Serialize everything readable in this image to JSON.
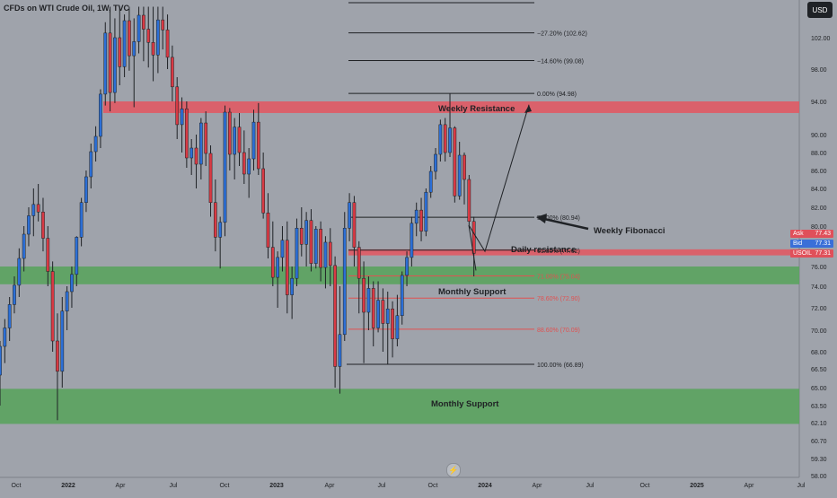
{
  "chart_data": {
    "type": "candlestick",
    "title": "CFDs on WTI Crude Oil, 1W, TVC",
    "currency": "USD",
    "y_ticks": [
      "102.00",
      "98.00",
      "94.00",
      "90.00",
      "88.00",
      "86.00",
      "84.00",
      "82.00",
      "80.00",
      "76.00",
      "74.00",
      "72.00",
      "70.00",
      "68.00",
      "66.50",
      "65.00",
      "63.50",
      "62.10",
      "60.70",
      "59.30",
      "58.00"
    ],
    "x_ticks": [
      "Oct",
      "2022",
      "Apr",
      "Jul",
      "Oct",
      "2023",
      "Apr",
      "Jul",
      "Oct",
      "2024",
      "Apr",
      "Jul",
      "Oct",
      "2025",
      "Apr",
      "Jul"
    ],
    "fib_levels": [
      {
        "label": "−27.20% (102.62)",
        "price": 102.62,
        "color": "#1f2124"
      },
      {
        "label": "−14.60% (99.08)",
        "price": 99.08,
        "color": "#1f2124"
      },
      {
        "label": "0.00% (94.98)",
        "price": 94.98,
        "color": "#1f2124"
      },
      {
        "label": "50.00% (80.94)",
        "price": 80.94,
        "color": "#1f2124"
      },
      {
        "label": "61.80% (77.62)",
        "price": 77.62,
        "color": "#1f2124"
      },
      {
        "label": "71.00% (75.04)",
        "price": 75.04,
        "color": "#e05252"
      },
      {
        "label": "78.60% (72.90)",
        "price": 72.9,
        "color": "#e05252"
      },
      {
        "label": "88.60% (70.09)",
        "price": 70.09,
        "color": "#e05252"
      },
      {
        "label": "100.00% (66.89)",
        "price": 66.89,
        "color": "#1f2124"
      }
    ],
    "zones": [
      {
        "label": "Weekly Resistance",
        "top": 94.0,
        "bottom": 92.6,
        "color": "#e05a64"
      },
      {
        "label": "Daily resistance",
        "top": 77.7,
        "bottom": 77.1,
        "color": "#e05a64"
      },
      {
        "label": "Monthly Support",
        "top": 76.0,
        "bottom": 74.2,
        "color": "#5aa35e"
      },
      {
        "label": "Monthly Support",
        "top": 64.9,
        "bottom": 62.0,
        "color": "#5aa35e"
      }
    ],
    "annotations": [
      "Weekly Fibonacci",
      "Monthly Support",
      "Daily resistance",
      "Weekly Resistance"
    ],
    "price_tags": [
      {
        "key": "Ask",
        "value": "77.43",
        "color": "#e0505a"
      },
      {
        "key": "Bid",
        "value": "77.31",
        "color": "#3a6fd8"
      },
      {
        "key": "USOIL",
        "value": "77.31",
        "color": "#e0505a"
      }
    ],
    "series": [
      {
        "o": 66.0,
        "h": 69.0,
        "l": 63.5,
        "c": 68.5
      },
      {
        "o": 68.5,
        "h": 71.0,
        "l": 67.0,
        "c": 70.2
      },
      {
        "o": 70.2,
        "h": 73.0,
        "l": 69.0,
        "c": 72.3
      },
      {
        "o": 72.3,
        "h": 75.0,
        "l": 71.5,
        "c": 74.1
      },
      {
        "o": 74.1,
        "h": 77.8,
        "l": 73.0,
        "c": 76.8
      },
      {
        "o": 76.8,
        "h": 80.0,
        "l": 75.5,
        "c": 79.2
      },
      {
        "o": 79.2,
        "h": 82.0,
        "l": 78.0,
        "c": 81.1
      },
      {
        "o": 81.1,
        "h": 84.0,
        "l": 79.0,
        "c": 82.3
      },
      {
        "o": 82.3,
        "h": 84.5,
        "l": 80.5,
        "c": 81.5
      },
      {
        "o": 81.5,
        "h": 83.0,
        "l": 77.5,
        "c": 78.8
      },
      {
        "o": 78.8,
        "h": 80.0,
        "l": 74.0,
        "c": 75.5
      },
      {
        "o": 75.5,
        "h": 76.5,
        "l": 68.0,
        "c": 69.0
      },
      {
        "o": 69.0,
        "h": 71.5,
        "l": 62.3,
        "c": 66.3
      },
      {
        "o": 66.3,
        "h": 73.0,
        "l": 65.0,
        "c": 71.7
      },
      {
        "o": 71.7,
        "h": 74.0,
        "l": 70.0,
        "c": 73.5
      },
      {
        "o": 73.5,
        "h": 76.0,
        "l": 72.0,
        "c": 75.2
      },
      {
        "o": 75.2,
        "h": 79.0,
        "l": 74.0,
        "c": 78.9
      },
      {
        "o": 78.9,
        "h": 83.0,
        "l": 78.0,
        "c": 82.5
      },
      {
        "o": 82.5,
        "h": 86.0,
        "l": 81.5,
        "c": 85.3
      },
      {
        "o": 85.3,
        "h": 89.0,
        "l": 84.0,
        "c": 88.1
      },
      {
        "o": 88.1,
        "h": 91.0,
        "l": 87.0,
        "c": 89.8
      },
      {
        "o": 89.8,
        "h": 95.5,
        "l": 88.5,
        "c": 94.9
      },
      {
        "o": 94.9,
        "h": 104.0,
        "l": 93.5,
        "c": 102.6
      },
      {
        "o": 102.6,
        "h": 106.0,
        "l": 92.8,
        "c": 95.1
      },
      {
        "o": 95.1,
        "h": 104.5,
        "l": 93.8,
        "c": 102.0
      },
      {
        "o": 102.0,
        "h": 106.0,
        "l": 96.0,
        "c": 98.3
      },
      {
        "o": 98.3,
        "h": 105.0,
        "l": 97.0,
        "c": 104.2
      },
      {
        "o": 104.2,
        "h": 106.0,
        "l": 97.8,
        "c": 99.7
      },
      {
        "o": 99.7,
        "h": 104.5,
        "l": 93.3,
        "c": 101.5
      },
      {
        "o": 101.5,
        "h": 106.0,
        "l": 100.0,
        "c": 104.9
      },
      {
        "o": 104.9,
        "h": 106.0,
        "l": 99.0,
        "c": 103.1
      },
      {
        "o": 103.1,
        "h": 106.0,
        "l": 98.2,
        "c": 101.4
      },
      {
        "o": 101.4,
        "h": 106.0,
        "l": 96.5,
        "c": 99.8
      },
      {
        "o": 99.8,
        "h": 106.0,
        "l": 97.5,
        "c": 104.3
      },
      {
        "o": 104.3,
        "h": 106.0,
        "l": 100.5,
        "c": 103.0
      },
      {
        "o": 103.0,
        "h": 105.0,
        "l": 98.0,
        "c": 99.5
      },
      {
        "o": 99.5,
        "h": 101.0,
        "l": 94.0,
        "c": 95.8
      },
      {
        "o": 95.8,
        "h": 97.0,
        "l": 89.5,
        "c": 91.2
      },
      {
        "o": 91.2,
        "h": 94.5,
        "l": 88.0,
        "c": 93.1
      },
      {
        "o": 93.1,
        "h": 94.0,
        "l": 86.3,
        "c": 87.4
      },
      {
        "o": 87.4,
        "h": 89.5,
        "l": 85.5,
        "c": 88.5
      },
      {
        "o": 88.5,
        "h": 90.0,
        "l": 84.0,
        "c": 86.7
      },
      {
        "o": 86.7,
        "h": 92.0,
        "l": 85.0,
        "c": 91.4
      },
      {
        "o": 91.4,
        "h": 92.8,
        "l": 86.5,
        "c": 87.9
      },
      {
        "o": 87.9,
        "h": 88.8,
        "l": 81.0,
        "c": 82.5
      },
      {
        "o": 82.5,
        "h": 85.0,
        "l": 77.5,
        "c": 78.9
      },
      {
        "o": 78.9,
        "h": 81.0,
        "l": 75.8,
        "c": 80.4
      },
      {
        "o": 80.4,
        "h": 93.5,
        "l": 79.0,
        "c": 92.7
      },
      {
        "o": 92.7,
        "h": 93.2,
        "l": 86.0,
        "c": 87.8
      },
      {
        "o": 87.8,
        "h": 92.0,
        "l": 85.0,
        "c": 90.9
      },
      {
        "o": 90.9,
        "h": 92.6,
        "l": 86.5,
        "c": 88.0
      },
      {
        "o": 88.0,
        "h": 90.5,
        "l": 84.5,
        "c": 85.6
      },
      {
        "o": 85.6,
        "h": 88.5,
        "l": 83.0,
        "c": 87.3
      },
      {
        "o": 87.3,
        "h": 93.0,
        "l": 86.0,
        "c": 91.5
      },
      {
        "o": 91.5,
        "h": 93.8,
        "l": 85.5,
        "c": 86.2
      },
      {
        "o": 86.2,
        "h": 88.0,
        "l": 80.8,
        "c": 81.4
      },
      {
        "o": 81.4,
        "h": 83.5,
        "l": 76.8,
        "c": 77.9
      },
      {
        "o": 77.9,
        "h": 80.5,
        "l": 74.0,
        "c": 74.9
      },
      {
        "o": 74.9,
        "h": 77.5,
        "l": 72.0,
        "c": 76.9
      },
      {
        "o": 76.9,
        "h": 80.0,
        "l": 75.5,
        "c": 78.6
      },
      {
        "o": 78.6,
        "h": 80.5,
        "l": 71.5,
        "c": 73.2
      },
      {
        "o": 73.2,
        "h": 76.0,
        "l": 71.0,
        "c": 74.8
      },
      {
        "o": 74.8,
        "h": 80.8,
        "l": 74.0,
        "c": 79.8
      },
      {
        "o": 79.8,
        "h": 82.0,
        "l": 77.0,
        "c": 78.2
      },
      {
        "o": 78.2,
        "h": 81.5,
        "l": 76.0,
        "c": 80.6
      },
      {
        "o": 80.6,
        "h": 81.8,
        "l": 75.5,
        "c": 76.3
      },
      {
        "o": 76.3,
        "h": 80.0,
        "l": 75.8,
        "c": 79.7
      },
      {
        "o": 79.7,
        "h": 80.5,
        "l": 74.5,
        "c": 75.9
      },
      {
        "o": 75.9,
        "h": 79.0,
        "l": 73.8,
        "c": 78.4
      },
      {
        "o": 78.4,
        "h": 79.8,
        "l": 74.0,
        "c": 76.1
      },
      {
        "o": 76.1,
        "h": 77.0,
        "l": 65.0,
        "c": 66.7
      },
      {
        "o": 66.7,
        "h": 74.0,
        "l": 64.5,
        "c": 69.6
      },
      {
        "o": 69.6,
        "h": 81.5,
        "l": 69.0,
        "c": 79.8
      },
      {
        "o": 79.8,
        "h": 83.5,
        "l": 78.5,
        "c": 82.5
      },
      {
        "o": 82.5,
        "h": 83.2,
        "l": 76.0,
        "c": 77.9
      },
      {
        "o": 77.9,
        "h": 78.5,
        "l": 71.5,
        "c": 74.8
      },
      {
        "o": 74.8,
        "h": 76.5,
        "l": 67.0,
        "c": 71.6
      },
      {
        "o": 71.6,
        "h": 75.0,
        "l": 70.0,
        "c": 73.8
      },
      {
        "o": 73.8,
        "h": 74.5,
        "l": 68.5,
        "c": 70.2
      },
      {
        "o": 70.2,
        "h": 74.5,
        "l": 69.8,
        "c": 72.7
      },
      {
        "o": 72.7,
        "h": 73.8,
        "l": 68.0,
        "c": 70.6
      },
      {
        "o": 70.6,
        "h": 73.5,
        "l": 66.9,
        "c": 71.9
      },
      {
        "o": 71.9,
        "h": 72.6,
        "l": 67.5,
        "c": 69.2
      },
      {
        "o": 69.2,
        "h": 73.2,
        "l": 68.5,
        "c": 71.3
      },
      {
        "o": 71.3,
        "h": 75.5,
        "l": 70.5,
        "c": 75.1
      },
      {
        "o": 75.1,
        "h": 77.5,
        "l": 74.0,
        "c": 76.9
      },
      {
        "o": 76.9,
        "h": 81.0,
        "l": 76.0,
        "c": 80.3
      },
      {
        "o": 80.3,
        "h": 82.5,
        "l": 79.0,
        "c": 81.7
      },
      {
        "o": 81.7,
        "h": 83.0,
        "l": 78.5,
        "c": 79.5
      },
      {
        "o": 79.5,
        "h": 84.0,
        "l": 79.0,
        "c": 83.6
      },
      {
        "o": 83.6,
        "h": 86.5,
        "l": 83.0,
        "c": 85.9
      },
      {
        "o": 85.9,
        "h": 88.5,
        "l": 85.0,
        "c": 87.8
      },
      {
        "o": 87.8,
        "h": 91.8,
        "l": 87.0,
        "c": 91.2
      },
      {
        "o": 91.2,
        "h": 92.0,
        "l": 87.0,
        "c": 88.0
      },
      {
        "o": 88.0,
        "h": 95.0,
        "l": 87.5,
        "c": 90.8
      },
      {
        "o": 90.8,
        "h": 91.0,
        "l": 82.5,
        "c": 83.2
      },
      {
        "o": 83.2,
        "h": 89.2,
        "l": 82.8,
        "c": 87.7
      },
      {
        "o": 87.7,
        "h": 88.0,
        "l": 82.3,
        "c": 85.0
      },
      {
        "o": 85.0,
        "h": 85.5,
        "l": 80.1,
        "c": 80.5
      },
      {
        "o": 80.5,
        "h": 81.0,
        "l": 75.0,
        "c": 77.3
      }
    ]
  }
}
